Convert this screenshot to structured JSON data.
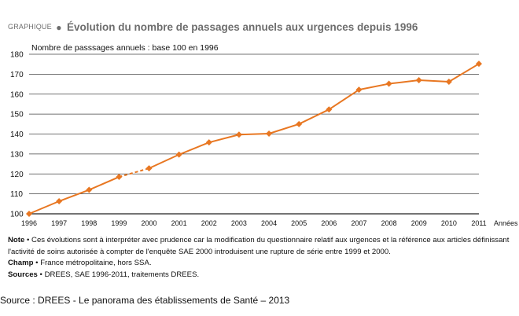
{
  "header": {
    "kicker": "GRAPHIQUE",
    "title": "Évolution du nombre de passages annuels aux urgences depuis 1996",
    "subtitle": "Nombre de passsages annuels : base 100 en 1996"
  },
  "chart_data": {
    "type": "line",
    "title": "Évolution du nombre de passages annuels aux urgences depuis 1996",
    "ylabel": "Nombre de passsages annuels : base 100 en 1996",
    "xlabel": "Années",
    "categories": [
      "1996",
      "1997",
      "1998",
      "1999",
      "2000",
      "2001",
      "2002",
      "2003",
      "2004",
      "2005",
      "2006",
      "2007",
      "2008",
      "2009",
      "2010",
      "2011"
    ],
    "series": [
      {
        "values": [
          100,
          106.3,
          112,
          118.5,
          122.8,
          129.7,
          135.8,
          139.7,
          140.2,
          145,
          152.3,
          162.2,
          165.2,
          167,
          166.2,
          175.2
        ]
      }
    ],
    "dashed_segment": {
      "from": "1999",
      "to": "2000"
    },
    "ylim": [
      100,
      180
    ],
    "yticks": [
      100,
      110,
      120,
      130,
      140,
      150,
      160,
      170,
      180
    ],
    "grid": "horizontal",
    "line_color": "#e87722"
  },
  "notes": {
    "note_label": "Note",
    "note_text": " • Ces évolutions sont à interpréter avec prudence car la modification du questionnaire relatif aux urgences et la référence aux articles définissant l'activité de soins autorisée à compter de l'enquête SAE 2000 introduisent une rupture de série entre 1999 et 2000.",
    "champ_label": "Champ",
    "champ_text": " • France métropolitaine, hors SSA.",
    "sources_label": "Sources",
    "sources_text": " • DREES, SAE 1996-2011, traitements DREES."
  },
  "source_line": "Source : DREES - Le panorama des établissements de Santé – 2013"
}
